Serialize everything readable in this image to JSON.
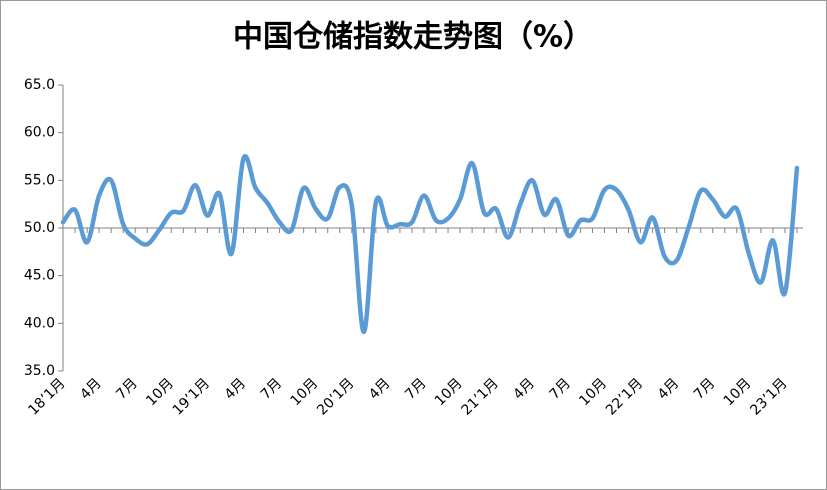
{
  "chart_data": {
    "type": "line",
    "title": "中国仓储指数走势图（%）",
    "categories": [
      "18’1月",
      null,
      null,
      "4月",
      null,
      null,
      "7月",
      null,
      null,
      "10月",
      null,
      null,
      "19’1月",
      null,
      null,
      "4月",
      null,
      null,
      "7月",
      null,
      null,
      "10月",
      null,
      null,
      "20’1月",
      null,
      null,
      "4月",
      null,
      null,
      "7月",
      null,
      null,
      "10月",
      null,
      null,
      "21’1月",
      null,
      null,
      "4月",
      null,
      null,
      "7月",
      null,
      null,
      "10月",
      null,
      null,
      "22’1月",
      null,
      null,
      "4月",
      null,
      null,
      "7月",
      null,
      null,
      "10月",
      null,
      null,
      "23’1月",
      null
    ],
    "values": [
      50.6,
      51.9,
      48.5,
      53.4,
      55.0,
      50.4,
      48.9,
      48.3,
      49.8,
      51.6,
      51.8,
      54.5,
      51.3,
      53.6,
      47.3,
      57.3,
      54.2,
      52.6,
      50.6,
      49.8,
      54.2,
      52.0,
      51.0,
      54.3,
      52.4,
      39.1,
      52.7,
      50.2,
      50.4,
      50.6,
      53.4,
      50.8,
      51.0,
      53.0,
      56.8,
      51.6,
      52.0,
      49.0,
      52.5,
      55.0,
      51.4,
      53.0,
      49.2,
      50.8,
      51.0,
      54.0,
      54.0,
      51.9,
      48.5,
      51.1,
      47.0,
      46.6,
      50.1,
      53.9,
      53.0,
      51.2,
      52.0,
      47.3,
      44.3,
      48.7,
      43.2,
      56.3
    ],
    "color": "#5b9bd5",
    "ylim": [
      35,
      65
    ],
    "yticks": [
      {
        "value": 35,
        "label": "35.0"
      },
      {
        "value": 40,
        "label": "40.0"
      },
      {
        "value": 45,
        "label": "45.0"
      },
      {
        "value": 50,
        "label": "50.0"
      },
      {
        "value": 55,
        "label": "55.0"
      },
      {
        "value": 60,
        "label": "60.0"
      },
      {
        "value": 65,
        "label": "65.0"
      }
    ],
    "x_axis_at": 50
  }
}
